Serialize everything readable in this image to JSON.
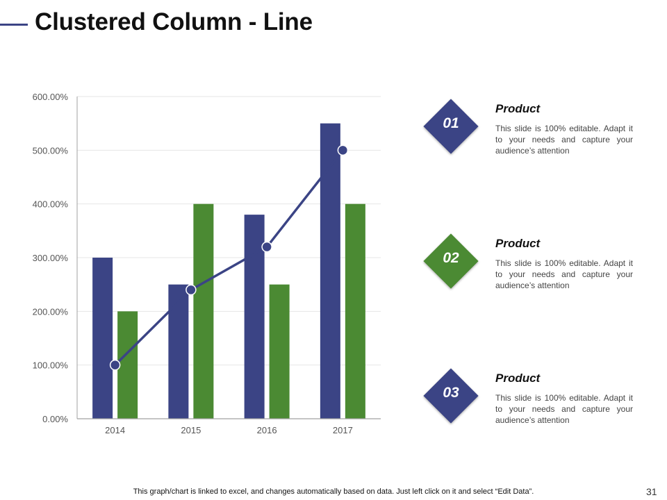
{
  "slide": {
    "title": "Clustered Column - Line",
    "footnote": "This graph/chart is linked to excel, and changes automatically based on data. Just left click on it and select “Edit Data”.",
    "page_number": "31"
  },
  "colors": {
    "blue": "#3b4485",
    "green": "#4b8a33",
    "grid": "#e6e6e6",
    "axis": "#a0a0a0"
  },
  "cards": [
    {
      "number": "01",
      "title": "Product",
      "text": "This slide is 100% editable. Adapt it to your needs and capture your audience’s attention",
      "color": "#3b4485"
    },
    {
      "number": "02",
      "title": "Product",
      "text": "This slide is 100% editable. Adapt it to your needs and capture your audience’s attention",
      "color": "#4b8a33"
    },
    {
      "number": "03",
      "title": "Product",
      "text": "This slide is 100% editable. Adapt it to your needs and capture your audience’s attention",
      "color": "#3b4485"
    }
  ],
  "chart_data": {
    "type": "bar",
    "categories": [
      "2014",
      "2015",
      "2016",
      "2017"
    ],
    "series": [
      {
        "kind": "bar",
        "color": "#3b4485",
        "values": [
          300,
          250,
          380,
          550
        ]
      },
      {
        "kind": "bar",
        "color": "#4b8a33",
        "values": [
          200,
          400,
          250,
          400
        ]
      },
      {
        "kind": "line",
        "color": "#3b4485",
        "values": [
          100,
          240,
          320,
          500
        ]
      }
    ],
    "yticks": [
      "0.00%",
      "100.00%",
      "200.00%",
      "300.00%",
      "400.00%",
      "500.00%",
      "600.00%"
    ],
    "ylim": [
      0,
      600
    ],
    "ystep": 100,
    "grid": true
  }
}
